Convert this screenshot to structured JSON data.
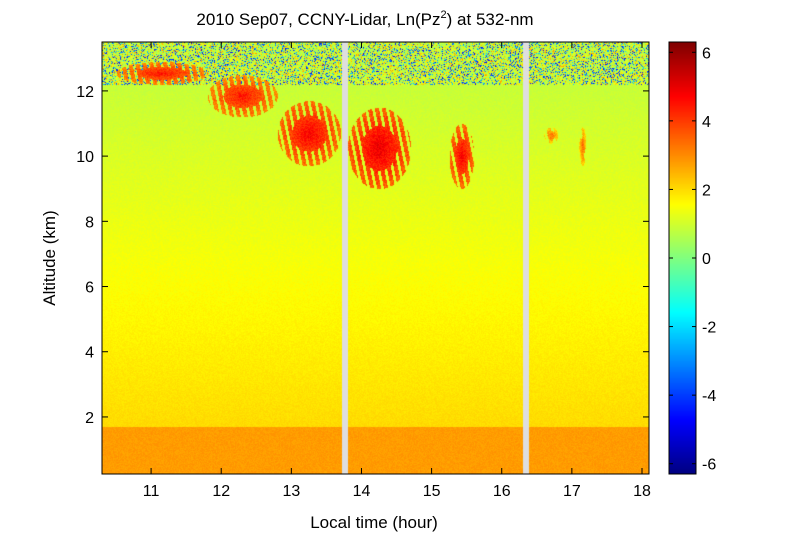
{
  "chart_data": {
    "type": "heatmap",
    "title": "2010 Sep07, CCNY-Lidar, Ln(Pz",
    "title_sup": "2",
    "title_tail": ") at 532-nm",
    "xlabel": "Local time (hour)",
    "ylabel": "Altitude (km)",
    "xlim": [
      10.3,
      18.1
    ],
    "ylim": [
      0.25,
      13.5
    ],
    "x_ticks": [
      11,
      12,
      13,
      14,
      15,
      16,
      17,
      18
    ],
    "y_ticks": [
      2,
      4,
      6,
      8,
      10,
      12
    ],
    "colorbar": {
      "range": [
        -6.3,
        6.3
      ],
      "ticks": [
        6,
        4,
        2,
        0,
        -2,
        -4,
        -6
      ],
      "colormap": "jet"
    },
    "data_gaps_hours": [
      [
        13.72,
        13.8
      ],
      [
        16.3,
        16.38
      ]
    ],
    "features": [
      {
        "name": "cirrus",
        "x": [
          10.5,
          11.8
        ],
        "y": [
          12.2,
          12.9
        ],
        "value": 4.5
      },
      {
        "name": "cirrus",
        "x": [
          11.8,
          12.8
        ],
        "y": [
          11.2,
          12.5
        ],
        "value": 4.5
      },
      {
        "name": "cirrus",
        "x": [
          12.8,
          13.7
        ],
        "y": [
          9.7,
          11.7
        ],
        "value": 4.8
      },
      {
        "name": "cirrus",
        "x": [
          13.8,
          14.7
        ],
        "y": [
          9.0,
          11.5
        ],
        "value": 5.0
      },
      {
        "name": "cirrus",
        "x": [
          15.25,
          15.6
        ],
        "y": [
          9.0,
          11.0
        ],
        "value": 4.8
      },
      {
        "name": "cirrus",
        "x": [
          16.6,
          16.8
        ],
        "y": [
          10.4,
          10.9
        ],
        "value": 3.5
      },
      {
        "name": "cirrus",
        "x": [
          17.1,
          17.2
        ],
        "y": [
          9.7,
          10.9
        ],
        "value": 3.5
      },
      {
        "name": "boundary-layer",
        "x": [
          10.3,
          18.1
        ],
        "y": [
          0.25,
          1.7
        ],
        "value": 2.8
      }
    ]
  }
}
